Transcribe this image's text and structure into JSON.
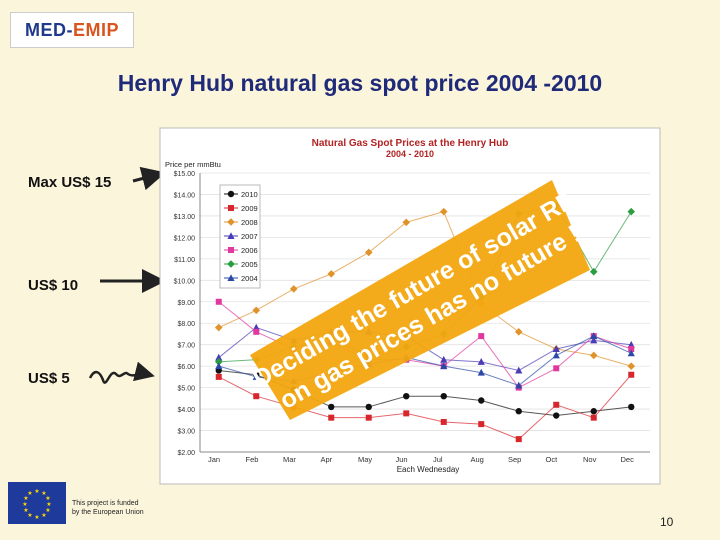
{
  "logo": {
    "part1": "MED-",
    "part2": "EMIP"
  },
  "slide_title": "Henry Hub natural gas spot price  2004 -2010",
  "side_labels": {
    "max": "Max US$ 15",
    "mid": "US$ 10",
    "low": "US$ 5"
  },
  "overlay_text": {
    "line1": "Deciding the future of solar RE",
    "line2": "on gas prices has no future !"
  },
  "eu_funding": {
    "line1": "This project is funded",
    "line2": "by the European Union"
  },
  "page_number": "10",
  "colors": {
    "background": "#fbf5dc",
    "title": "#1f2a78",
    "overlay_box": "#f3a70f",
    "chart_title": "#b22222"
  },
  "chart_data": {
    "type": "scatter",
    "title": "Natural Gas Spot Prices at the Henry Hub",
    "subtitle": "2004 - 2010",
    "ylabel": "Price per mmBtu",
    "xlabel": "Each Wednesday",
    "ylim": [
      2,
      15
    ],
    "y_ticks": [
      "$2.00",
      "$3.00",
      "$4.00",
      "$5.00",
      "$6.00",
      "$7.00",
      "$8.00",
      "$9.00",
      "$10.00",
      "$11.00",
      "$12.00",
      "$13.00",
      "$14.00",
      "$15.00"
    ],
    "x_categories": [
      "Jan",
      "Feb",
      "Mar",
      "Apr",
      "May",
      "Jun",
      "Jul",
      "Aug",
      "Sep",
      "Oct",
      "Nov",
      "Dec"
    ],
    "grid": true,
    "legend_position": "top-left",
    "series": [
      {
        "name": "2010",
        "color": "#111111",
        "marker": "circle",
        "values": [
          5.8,
          5.6,
          4.9,
          4.1,
          4.1,
          4.6,
          4.6,
          4.4,
          3.9,
          3.7,
          3.9,
          4.1
        ]
      },
      {
        "name": "2009",
        "color": "#d8262d",
        "marker": "square",
        "values": [
          5.5,
          4.6,
          4.1,
          3.6,
          3.6,
          3.8,
          3.4,
          3.3,
          2.6,
          4.2,
          3.6,
          5.6
        ]
      },
      {
        "name": "2008",
        "color": "#e0932b",
        "marker": "diamond",
        "values": [
          7.8,
          8.6,
          9.6,
          10.3,
          11.3,
          12.7,
          13.2,
          8.9,
          7.6,
          6.8,
          6.5,
          6.0
        ]
      },
      {
        "name": "2007",
        "color": "#4a3cb6",
        "marker": "triangle",
        "values": [
          6.4,
          7.8,
          7.2,
          7.6,
          7.6,
          7.4,
          6.3,
          6.2,
          5.8,
          6.8,
          7.2,
          7.0
        ]
      },
      {
        "name": "2006",
        "color": "#e0389e",
        "marker": "square",
        "values": [
          9.0,
          7.6,
          6.8,
          7.1,
          6.3,
          6.3,
          6.0,
          7.4,
          5.0,
          5.9,
          7.4,
          6.8
        ]
      },
      {
        "name": "2005",
        "color": "#2a9d3f",
        "marker": "diamond",
        "values": [
          6.2,
          6.3,
          6.9,
          7.3,
          6.5,
          6.9,
          7.5,
          9.2,
          13.1,
          13.5,
          10.4,
          13.2
        ]
      },
      {
        "name": "2004",
        "color": "#2b4aa8",
        "marker": "triangle",
        "values": [
          6.0,
          5.5,
          5.3,
          5.7,
          6.1,
          6.4,
          6.0,
          5.7,
          5.1,
          6.5,
          7.4,
          6.6
        ]
      }
    ]
  }
}
